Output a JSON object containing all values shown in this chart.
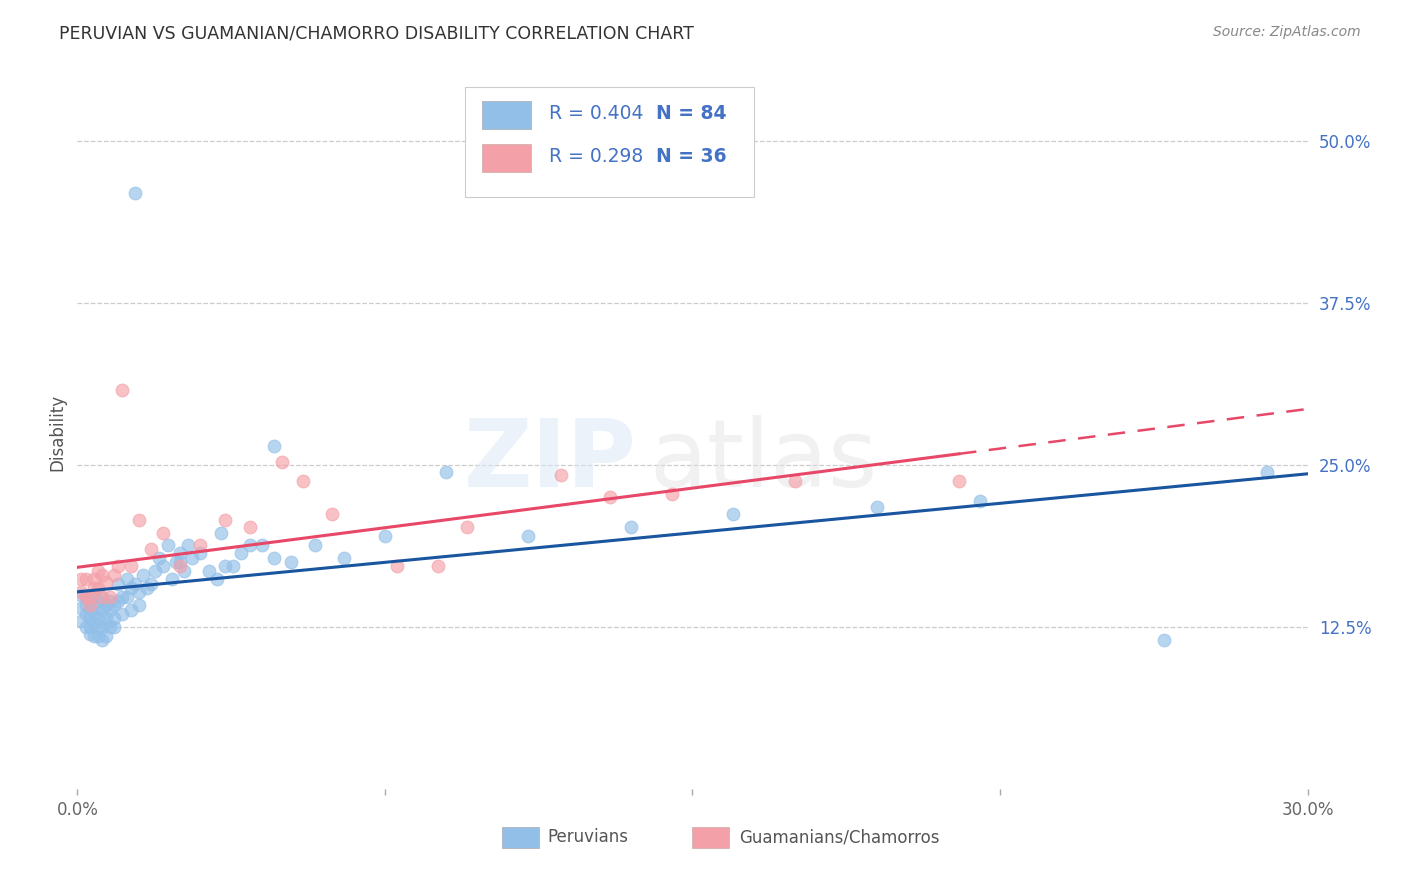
{
  "title": "PERUVIAN VS GUAMANIAN/CHAMORRO DISABILITY CORRELATION CHART",
  "source": "Source: ZipAtlas.com",
  "ylabel": "Disability",
  "xlim": [
    0.0,
    0.3
  ],
  "ylim": [
    -0.02,
    0.55
  ],
  "plot_ylim": [
    0.0,
    0.55
  ],
  "xtick_positions": [
    0.0,
    0.075,
    0.15,
    0.225,
    0.3
  ],
  "xticklabels": [
    "0.0%",
    "",
    "",
    "",
    "30.0%"
  ],
  "ytick_right": [
    0.125,
    0.25,
    0.375,
    0.5
  ],
  "ytick_right_labels": [
    "12.5%",
    "25.0%",
    "37.5%",
    "50.0%"
  ],
  "blue_scatter_color": "#92bfe8",
  "pink_scatter_color": "#f4a0a8",
  "blue_line_color": "#1a56a0",
  "pink_line_color": "#e84868",
  "right_axis_color": "#4472c4",
  "grid_color": "#cccccc",
  "bg_color": "#ffffff",
  "title_color": "#333333",
  "source_color": "#888888",
  "legend_R_blue": "0.404",
  "legend_N_blue": "84",
  "legend_R_pink": "0.298",
  "legend_N_pink": "36",
  "peruvian_x": [
    0.001,
    0.001,
    0.001,
    0.002,
    0.002,
    0.002,
    0.002,
    0.003,
    0.003,
    0.003,
    0.003,
    0.003,
    0.004,
    0.004,
    0.004,
    0.004,
    0.005,
    0.005,
    0.005,
    0.005,
    0.005,
    0.006,
    0.006,
    0.006,
    0.006,
    0.007,
    0.007,
    0.007,
    0.007,
    0.008,
    0.008,
    0.008,
    0.009,
    0.009,
    0.009,
    0.01,
    0.01,
    0.011,
    0.011,
    0.012,
    0.012,
    0.013,
    0.013,
    0.014,
    0.015,
    0.015,
    0.016,
    0.017,
    0.018,
    0.019,
    0.02,
    0.021,
    0.022,
    0.023,
    0.024,
    0.025,
    0.026,
    0.027,
    0.028,
    0.03,
    0.032,
    0.034,
    0.036,
    0.038,
    0.04,
    0.042,
    0.045,
    0.048,
    0.052,
    0.058,
    0.065,
    0.075,
    0.09,
    0.11,
    0.135,
    0.16,
    0.195,
    0.22,
    0.265,
    0.29,
    0.048,
    0.035,
    0.025,
    0.014
  ],
  "peruvian_y": [
    0.15,
    0.14,
    0.13,
    0.148,
    0.135,
    0.125,
    0.142,
    0.145,
    0.132,
    0.125,
    0.138,
    0.12,
    0.15,
    0.135,
    0.128,
    0.118,
    0.145,
    0.132,
    0.125,
    0.118,
    0.14,
    0.148,
    0.138,
    0.125,
    0.115,
    0.142,
    0.132,
    0.128,
    0.118,
    0.145,
    0.138,
    0.125,
    0.142,
    0.132,
    0.125,
    0.158,
    0.145,
    0.148,
    0.135,
    0.162,
    0.148,
    0.155,
    0.138,
    0.158,
    0.152,
    0.142,
    0.165,
    0.155,
    0.158,
    0.168,
    0.178,
    0.172,
    0.188,
    0.162,
    0.175,
    0.182,
    0.168,
    0.188,
    0.178,
    0.182,
    0.168,
    0.162,
    0.172,
    0.172,
    0.182,
    0.188,
    0.188,
    0.178,
    0.175,
    0.188,
    0.178,
    0.195,
    0.245,
    0.195,
    0.202,
    0.212,
    0.218,
    0.222,
    0.115,
    0.245,
    0.265,
    0.198,
    0.175,
    0.46
  ],
  "guamanian_x": [
    0.001,
    0.001,
    0.002,
    0.002,
    0.003,
    0.003,
    0.004,
    0.004,
    0.005,
    0.005,
    0.006,
    0.006,
    0.007,
    0.008,
    0.009,
    0.01,
    0.011,
    0.013,
    0.015,
    0.018,
    0.021,
    0.025,
    0.03,
    0.036,
    0.042,
    0.05,
    0.062,
    0.078,
    0.095,
    0.118,
    0.145,
    0.175,
    0.215,
    0.13,
    0.088,
    0.055
  ],
  "guamanian_y": [
    0.152,
    0.162,
    0.148,
    0.162,
    0.148,
    0.142,
    0.155,
    0.162,
    0.168,
    0.155,
    0.165,
    0.148,
    0.16,
    0.148,
    0.165,
    0.172,
    0.308,
    0.172,
    0.208,
    0.185,
    0.198,
    0.172,
    0.188,
    0.208,
    0.202,
    0.252,
    0.212,
    0.172,
    0.202,
    0.242,
    0.228,
    0.238,
    0.238,
    0.225,
    0.172,
    0.238
  ]
}
